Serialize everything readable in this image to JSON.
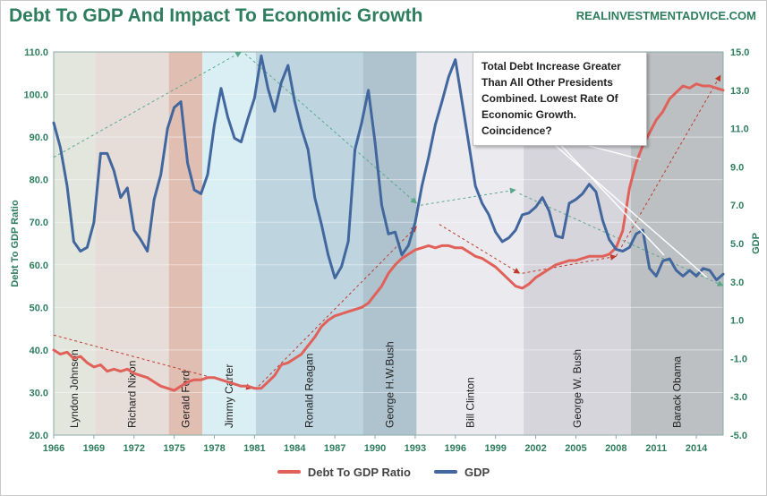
{
  "chart_title": "Debt To GDP And Impact To Economic Growth",
  "source_label": "REALINVESTMENTADVICE.COM",
  "annotation": "Total Debt Increase Greater Than All Other Presidents Combined. Lowest Rate Of Economic Growth. Coincidence?",
  "colors": {
    "title": "#2e7d5e",
    "debt_line": "#e0615a",
    "gdp_line": "#41679e",
    "axis_text": "#2e7d5e",
    "trend_arrow_red": "#c0392b",
    "trend_arrow_green": "#5aa88a"
  },
  "chart_data": {
    "type": "line",
    "xlabel": "",
    "x_ticks": [
      "1966",
      "1969",
      "1972",
      "1975",
      "1978",
      "1981",
      "1984",
      "1987",
      "1990",
      "1993",
      "1996",
      "1999",
      "2002",
      "2005",
      "2008",
      "2011",
      "2014"
    ],
    "xlim": [
      1966,
      2016
    ],
    "y_left": {
      "label": "Debt To GDP Ratio",
      "ticks": [
        "20.0",
        "30.0",
        "40.0",
        "50.0",
        "60.0",
        "70.0",
        "80.0",
        "90.0",
        "100.0",
        "110.0"
      ],
      "range": [
        20,
        110
      ]
    },
    "y_right": {
      "label": "GDP",
      "ticks": [
        "-5.0",
        "-3.0",
        "-1.0",
        "1.0",
        "3.0",
        "5.0",
        "7.0",
        "9.0",
        "11.0",
        "13.0",
        "15.0"
      ],
      "range": [
        -5,
        15
      ]
    },
    "legend": {
      "position": "bottom",
      "entries": [
        "Debt To GDP Ratio",
        "GDP"
      ]
    },
    "presidential_terms": [
      {
        "name": "Lyndon Johnson",
        "start": 1966,
        "end": 1969.1,
        "color": "#d9ddd0"
      },
      {
        "name": "Richard Nixon",
        "start": 1969.1,
        "end": 1974.6,
        "color": "#ddd2cb"
      },
      {
        "name": "Gerald Ford",
        "start": 1974.6,
        "end": 1977.1,
        "color": "#d6aa98"
      },
      {
        "name": "Jimmy Carter",
        "start": 1977.1,
        "end": 1981.1,
        "color": "#cde9ef"
      },
      {
        "name": "Ronald Reagan",
        "start": 1981.1,
        "end": 1989.1,
        "color": "#a8c7d6"
      },
      {
        "name": "George H.W.Bush",
        "start": 1989.1,
        "end": 1993.1,
        "color": "#93afbc"
      },
      {
        "name": "Bill Clinton",
        "start": 1993.1,
        "end": 2001.1,
        "color": "#e4e4ea"
      },
      {
        "name": "George W. Bush",
        "start": 2001.1,
        "end": 2009.1,
        "color": "#c9c7d0"
      },
      {
        "name": "Barack Obama",
        "start": 2009.1,
        "end": 2016,
        "color": "#a7abad"
      }
    ],
    "series": [
      {
        "name": "Debt To GDP Ratio",
        "axis": "left",
        "points": [
          [
            1966,
            40
          ],
          [
            1966.5,
            39
          ],
          [
            1967,
            39.5
          ],
          [
            1967.5,
            38
          ],
          [
            1968,
            38.5
          ],
          [
            1968.5,
            37
          ],
          [
            1969,
            36
          ],
          [
            1969.5,
            36.5
          ],
          [
            1970,
            35
          ],
          [
            1970.5,
            35.5
          ],
          [
            1971,
            35
          ],
          [
            1971.5,
            35.5
          ],
          [
            1972,
            34.5
          ],
          [
            1972.5,
            34
          ],
          [
            1973,
            33.5
          ],
          [
            1973.5,
            32.5
          ],
          [
            1974,
            31.5
          ],
          [
            1974.5,
            31
          ],
          [
            1975,
            30.5
          ],
          [
            1975.5,
            31.5
          ],
          [
            1976,
            32.5
          ],
          [
            1976.5,
            33
          ],
          [
            1977,
            33
          ],
          [
            1977.5,
            33.5
          ],
          [
            1978,
            33.5
          ],
          [
            1978.5,
            33
          ],
          [
            1979,
            32.5
          ],
          [
            1979.5,
            32
          ],
          [
            1980,
            31.5
          ],
          [
            1980.5,
            31.5
          ],
          [
            1981,
            31
          ],
          [
            1981.5,
            31
          ],
          [
            1982,
            32.5
          ],
          [
            1982.5,
            34
          ],
          [
            1983,
            36.5
          ],
          [
            1983.5,
            37
          ],
          [
            1984,
            38
          ],
          [
            1984.5,
            39
          ],
          [
            1985,
            41
          ],
          [
            1985.5,
            43
          ],
          [
            1986,
            45.5
          ],
          [
            1986.5,
            47
          ],
          [
            1987,
            48
          ],
          [
            1987.5,
            48.5
          ],
          [
            1988,
            49
          ],
          [
            1988.5,
            49.5
          ],
          [
            1989,
            50
          ],
          [
            1989.5,
            51
          ],
          [
            1990,
            53
          ],
          [
            1990.5,
            55
          ],
          [
            1991,
            58
          ],
          [
            1991.5,
            60
          ],
          [
            1992,
            61.5
          ],
          [
            1992.5,
            62.5
          ],
          [
            1993,
            63.5
          ],
          [
            1993.5,
            64
          ],
          [
            1994,
            64.5
          ],
          [
            1994.5,
            64
          ],
          [
            1995,
            64.5
          ],
          [
            1995.5,
            64.5
          ],
          [
            1996,
            64
          ],
          [
            1996.5,
            64
          ],
          [
            1997,
            63
          ],
          [
            1997.5,
            62
          ],
          [
            1998,
            61.5
          ],
          [
            1998.5,
            60.5
          ],
          [
            1999,
            59.5
          ],
          [
            1999.5,
            58
          ],
          [
            2000,
            56.5
          ],
          [
            2000.5,
            55
          ],
          [
            2001,
            54.5
          ],
          [
            2001.5,
            55.5
          ],
          [
            2002,
            57
          ],
          [
            2002.5,
            58
          ],
          [
            2003,
            59
          ],
          [
            2003.5,
            60
          ],
          [
            2004,
            60.5
          ],
          [
            2004.5,
            61
          ],
          [
            2005,
            61
          ],
          [
            2005.5,
            61.5
          ],
          [
            2006,
            62
          ],
          [
            2006.5,
            62
          ],
          [
            2007,
            62
          ],
          [
            2007.5,
            62.5
          ],
          [
            2008,
            64
          ],
          [
            2008.5,
            68
          ],
          [
            2009,
            78
          ],
          [
            2009.5,
            84
          ],
          [
            2010,
            88
          ],
          [
            2010.5,
            91
          ],
          [
            2011,
            94
          ],
          [
            2011.5,
            96
          ],
          [
            2012,
            99
          ],
          [
            2012.5,
            100.5
          ],
          [
            2013,
            102
          ],
          [
            2013.5,
            101.5
          ],
          [
            2014,
            102.5
          ],
          [
            2014.5,
            102
          ],
          [
            2015,
            102
          ],
          [
            2015.5,
            101.5
          ],
          [
            2016,
            101
          ]
        ]
      },
      {
        "name": "GDP",
        "axis": "right",
        "points": [
          [
            1966,
            11.3
          ],
          [
            1966.5,
            10
          ],
          [
            1967,
            8
          ],
          [
            1967.5,
            5.1
          ],
          [
            1968,
            4.6
          ],
          [
            1968.5,
            4.8
          ],
          [
            1969,
            6.1
          ],
          [
            1969.5,
            9.7
          ],
          [
            1970,
            9.7
          ],
          [
            1970.5,
            8.8
          ],
          [
            1971,
            7.4
          ],
          [
            1971.5,
            7.9
          ],
          [
            1972,
            5.7
          ],
          [
            1972.5,
            5.2
          ],
          [
            1973,
            4.6
          ],
          [
            1973.5,
            7.3
          ],
          [
            1974,
            8.6
          ],
          [
            1974.5,
            11
          ],
          [
            1975,
            12.1
          ],
          [
            1975.5,
            12.4
          ],
          [
            1976,
            9.2
          ],
          [
            1976.5,
            7.8
          ],
          [
            1977,
            7.6
          ],
          [
            1977.5,
            8.6
          ],
          [
            1978,
            11.2
          ],
          [
            1978.5,
            13.1
          ],
          [
            1979,
            11.6
          ],
          [
            1979.5,
            10.5
          ],
          [
            1980,
            10.3
          ],
          [
            1980.5,
            11.5
          ],
          [
            1981,
            12.6
          ],
          [
            1981.5,
            14.8
          ],
          [
            1982,
            13.1
          ],
          [
            1982.5,
            11.9
          ],
          [
            1983,
            13.4
          ],
          [
            1983.5,
            14.3
          ],
          [
            1984,
            12.4
          ],
          [
            1984.5,
            11
          ],
          [
            1985,
            9.9
          ],
          [
            1985.5,
            7.4
          ],
          [
            1986,
            6
          ],
          [
            1986.5,
            4.4
          ],
          [
            1987,
            3.2
          ],
          [
            1987.5,
            3.8
          ],
          [
            1988,
            5.1
          ],
          [
            1988.5,
            9.9
          ],
          [
            1989,
            11.3
          ],
          [
            1989.5,
            13
          ],
          [
            1990,
            10.3
          ],
          [
            1990.5,
            7
          ],
          [
            1991,
            5.5
          ],
          [
            1991.5,
            5.6
          ],
          [
            1992,
            4.4
          ],
          [
            1992.5,
            4.9
          ],
          [
            1993,
            6.1
          ],
          [
            1993.5,
            8
          ],
          [
            1994,
            9.5
          ],
          [
            1994.5,
            11.2
          ],
          [
            1995,
            12.4
          ],
          [
            1995.5,
            13.7
          ],
          [
            1996,
            14.6
          ],
          [
            1996.5,
            12.4
          ],
          [
            1997,
            10.2
          ],
          [
            1997.5,
            8
          ],
          [
            1998,
            7.1
          ],
          [
            1998.5,
            6.5
          ],
          [
            1999,
            5.6
          ],
          [
            1999.5,
            5.1
          ],
          [
            2000,
            5.3
          ],
          [
            2000.5,
            5.7
          ],
          [
            2001,
            6.5
          ],
          [
            2001.5,
            6.6
          ],
          [
            2002,
            6.9
          ],
          [
            2002.5,
            7.4
          ],
          [
            2003,
            6.7
          ],
          [
            2003.5,
            5.4
          ],
          [
            2004,
            5.3
          ],
          [
            2004.5,
            7.1
          ],
          [
            2005,
            7.3
          ],
          [
            2005.5,
            7.6
          ],
          [
            2006,
            8.1
          ],
          [
            2006.5,
            7.7
          ],
          [
            2007,
            6.2
          ],
          [
            2007.5,
            5.2
          ],
          [
            2008,
            4.7
          ],
          [
            2008.5,
            4.6
          ],
          [
            2009,
            4.8
          ],
          [
            2009.5,
            5.5
          ],
          [
            2010,
            5.7
          ],
          [
            2010.5,
            3.7
          ],
          [
            2011,
            3.3
          ],
          [
            2011.5,
            4.1
          ],
          [
            2012,
            4.2
          ],
          [
            2012.5,
            3.6
          ],
          [
            2013,
            3.3
          ],
          [
            2013.5,
            3.6
          ],
          [
            2014,
            3.3
          ],
          [
            2014.5,
            3.7
          ],
          [
            2015,
            3.6
          ],
          [
            2015.5,
            3.1
          ],
          [
            2016,
            3.4
          ]
        ]
      }
    ]
  }
}
